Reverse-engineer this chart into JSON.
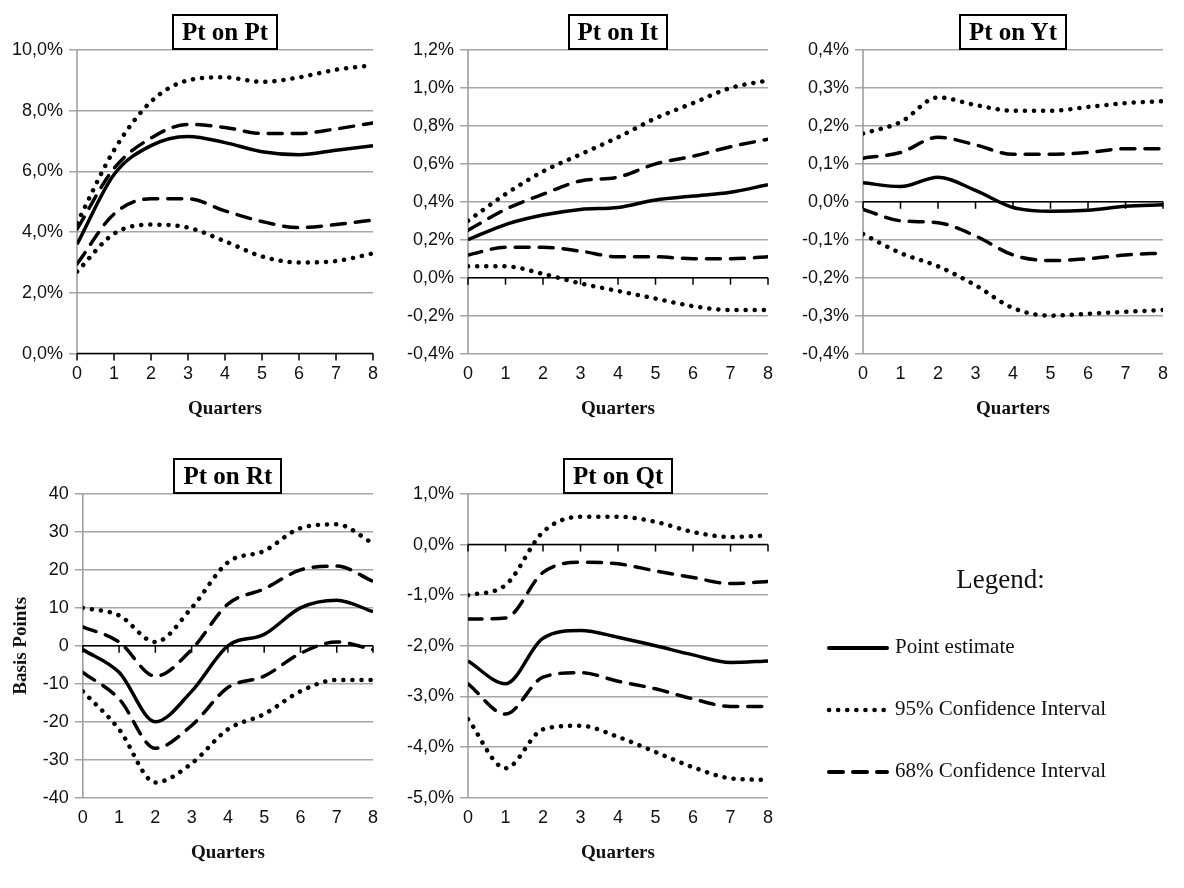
{
  "chart_data": [
    {
      "type": "line",
      "title": "Pt on Pt",
      "xlabel": "Quarters",
      "x": [
        0,
        1,
        2,
        3,
        4,
        5,
        6,
        7,
        8
      ],
      "xlim": [
        0,
        8
      ],
      "xticks": [
        0,
        1,
        2,
        3,
        4,
        5,
        6,
        7,
        8
      ],
      "ylim": [
        0,
        10
      ],
      "yticks": [
        {
          "value": 0,
          "label": "0,0%"
        },
        {
          "value": 2,
          "label": "2,0%"
        },
        {
          "value": 4,
          "label": "4,0%"
        },
        {
          "value": 6,
          "label": "6,0%"
        },
        {
          "value": 8,
          "label": "8,0%"
        },
        {
          "value": 10,
          "label": "10,0%"
        }
      ],
      "grid": "y",
      "marker": "none",
      "series": [
        {
          "color": "#000000",
          "line_style": "dotted",
          "values": [
            4.3,
            6.7,
            8.3,
            9.0,
            9.1,
            8.95,
            9.1,
            9.35,
            9.5
          ]
        },
        {
          "color": "#000000",
          "line_style": "dashed",
          "values": [
            4.1,
            6.1,
            7.1,
            7.55,
            7.45,
            7.25,
            7.25,
            7.4,
            7.6
          ]
        },
        {
          "color": "#000000",
          "line_style": "solid",
          "values": [
            3.6,
            5.9,
            6.85,
            7.15,
            6.95,
            6.65,
            6.55,
            6.7,
            6.85
          ]
        },
        {
          "color": "#000000",
          "line_style": "dashed",
          "values": [
            2.95,
            4.6,
            5.1,
            5.1,
            4.7,
            4.35,
            4.15,
            4.25,
            4.4
          ]
        },
        {
          "color": "#000000",
          "line_style": "dotted",
          "values": [
            2.7,
            3.95,
            4.25,
            4.15,
            3.7,
            3.2,
            3.0,
            3.05,
            3.3
          ]
        }
      ]
    },
    {
      "type": "line",
      "title": "Pt on It",
      "xlabel": "Quarters",
      "x": [
        0,
        1,
        2,
        3,
        4,
        5,
        6,
        7,
        8
      ],
      "xlim": [
        0,
        8
      ],
      "xticks": [
        0,
        1,
        2,
        3,
        4,
        5,
        6,
        7,
        8
      ],
      "ylim": [
        -0.4,
        1.2
      ],
      "yticks": [
        {
          "value": -0.4,
          "label": "-0,4%"
        },
        {
          "value": -0.2,
          "label": "-0,2%"
        },
        {
          "value": 0,
          "label": "0,0%"
        },
        {
          "value": 0.2,
          "label": "0,2%"
        },
        {
          "value": 0.4,
          "label": "0,4%"
        },
        {
          "value": 0.6,
          "label": "0,6%"
        },
        {
          "value": 0.8,
          "label": "0,8%"
        },
        {
          "value": 1.0,
          "label": "1,0%"
        },
        {
          "value": 1.2,
          "label": "1,2%"
        }
      ],
      "grid": "y",
      "marker": "none",
      "series": [
        {
          "color": "#000000",
          "line_style": "dotted",
          "values": [
            0.3,
            0.44,
            0.56,
            0.65,
            0.74,
            0.84,
            0.92,
            1.0,
            1.04
          ]
        },
        {
          "color": "#000000",
          "line_style": "dashed",
          "values": [
            0.25,
            0.36,
            0.44,
            0.51,
            0.53,
            0.6,
            0.64,
            0.69,
            0.73
          ]
        },
        {
          "color": "#000000",
          "line_style": "solid",
          "values": [
            0.2,
            0.28,
            0.33,
            0.36,
            0.37,
            0.41,
            0.43,
            0.45,
            0.49
          ]
        },
        {
          "color": "#000000",
          "line_style": "dashed",
          "values": [
            0.12,
            0.16,
            0.16,
            0.14,
            0.11,
            0.11,
            0.1,
            0.1,
            0.11
          ]
        },
        {
          "color": "#000000",
          "line_style": "dotted",
          "values": [
            0.06,
            0.06,
            0.02,
            -0.03,
            -0.07,
            -0.11,
            -0.15,
            -0.17,
            -0.17
          ]
        }
      ]
    },
    {
      "type": "line",
      "title": "Pt on Yt",
      "xlabel": "Quarters",
      "x": [
        0,
        1,
        2,
        3,
        4,
        5,
        6,
        7,
        8
      ],
      "xlim": [
        0,
        8
      ],
      "xticks": [
        0,
        1,
        2,
        3,
        4,
        5,
        6,
        7,
        8
      ],
      "ylim": [
        -0.4,
        0.4
      ],
      "yticks": [
        {
          "value": -0.4,
          "label": "-0,4%"
        },
        {
          "value": -0.3,
          "label": "-0,3%"
        },
        {
          "value": -0.2,
          "label": "-0,2%"
        },
        {
          "value": -0.1,
          "label": "-0,1%"
        },
        {
          "value": 0,
          "label": "0,0%"
        },
        {
          "value": 0.1,
          "label": "0,1%"
        },
        {
          "value": 0.2,
          "label": "0,2%"
        },
        {
          "value": 0.3,
          "label": "0,3%"
        },
        {
          "value": 0.4,
          "label": "0,4%"
        }
      ],
      "grid": "y",
      "marker": "none",
      "series": [
        {
          "color": "#000000",
          "line_style": "dotted",
          "values": [
            0.18,
            0.21,
            0.275,
            0.255,
            0.24,
            0.24,
            0.25,
            0.26,
            0.265
          ]
        },
        {
          "color": "#000000",
          "line_style": "dashed",
          "values": [
            0.115,
            0.13,
            0.17,
            0.15,
            0.125,
            0.125,
            0.13,
            0.14,
            0.14
          ]
        },
        {
          "color": "#000000",
          "line_style": "solid",
          "values": [
            0.05,
            0.04,
            0.065,
            0.03,
            -0.015,
            -0.025,
            -0.022,
            -0.012,
            -0.008
          ]
        },
        {
          "color": "#000000",
          "line_style": "dashed",
          "values": [
            -0.02,
            -0.05,
            -0.055,
            -0.09,
            -0.14,
            -0.155,
            -0.15,
            -0.14,
            -0.135
          ]
        },
        {
          "color": "#000000",
          "line_style": "dotted",
          "values": [
            -0.085,
            -0.135,
            -0.17,
            -0.22,
            -0.28,
            -0.3,
            -0.295,
            -0.29,
            -0.285
          ]
        }
      ]
    },
    {
      "type": "line",
      "title": "Pt on Rt",
      "xlabel": "Quarters",
      "ylabel": "Basis Points",
      "x": [
        0,
        1,
        2,
        3,
        4,
        5,
        6,
        7,
        8
      ],
      "xlim": [
        0,
        8
      ],
      "xticks": [
        0,
        1,
        2,
        3,
        4,
        5,
        6,
        7,
        8
      ],
      "ylim": [
        -40,
        40
      ],
      "yticks": [
        -40,
        -30,
        -20,
        -10,
        0,
        10,
        20,
        30,
        40
      ],
      "grid": "y",
      "marker": "none",
      "series": [
        {
          "color": "#000000",
          "line_style": "dotted",
          "values": [
            10,
            8,
            1,
            10,
            22,
            25,
            31,
            32,
            27
          ]
        },
        {
          "color": "#000000",
          "line_style": "dashed",
          "values": [
            5,
            1,
            -8,
            -1,
            11,
            15,
            20,
            21,
            17
          ]
        },
        {
          "color": "#000000",
          "line_style": "solid",
          "values": [
            -1,
            -7,
            -20,
            -12,
            0,
            3,
            10,
            12,
            9
          ]
        },
        {
          "color": "#000000",
          "line_style": "dashed",
          "values": [
            -7,
            -14,
            -27,
            -21,
            -11,
            -8,
            -2,
            1,
            -1
          ]
        },
        {
          "color": "#000000",
          "line_style": "dotted",
          "values": [
            -12,
            -22,
            -36,
            -31,
            -22,
            -18,
            -12,
            -9,
            -9
          ]
        }
      ]
    },
    {
      "type": "line",
      "title": "Pt on Qt",
      "xlabel": "Quarters",
      "legend_title": "Legend:",
      "legend": "right",
      "x": [
        0,
        1,
        2,
        3,
        4,
        5,
        6,
        7,
        8
      ],
      "xlim": [
        0,
        8
      ],
      "xticks": [
        0,
        1,
        2,
        3,
        4,
        5,
        6,
        7,
        8
      ],
      "ylim": [
        -5,
        1
      ],
      "yticks": [
        {
          "value": -5,
          "label": "-5,0%"
        },
        {
          "value": -4,
          "label": "-4,0%"
        },
        {
          "value": -3,
          "label": "-3,0%"
        },
        {
          "value": -2,
          "label": "-2,0%"
        },
        {
          "value": -1,
          "label": "-1,0%"
        },
        {
          "value": 0,
          "label": "0,0%"
        },
        {
          "value": 1,
          "label": "1,0%"
        }
      ],
      "grid": "y",
      "marker": "none",
      "series": [
        {
          "name": "Point estimate",
          "color": "#000000",
          "line_style": "solid",
          "values": [
            -2.3,
            -2.75,
            -1.85,
            -1.7,
            -1.83,
            -2.0,
            -2.18,
            -2.33,
            -2.3
          ]
        },
        {
          "name": "95% Confidence Interval",
          "color": "#000000",
          "line_style": "dotted",
          "values": [
            -1.0,
            -0.8,
            0.25,
            0.55,
            0.55,
            0.45,
            0.25,
            0.15,
            0.18
          ]
        },
        {
          "color": "#000000",
          "line_style": "dotted",
          "values": [
            -3.45,
            -4.42,
            -3.65,
            -3.58,
            -3.8,
            -4.1,
            -4.4,
            -4.62,
            -4.65
          ]
        },
        {
          "name": "68% Confidence Interval",
          "color": "#000000",
          "line_style": "dashed",
          "values": [
            -1.47,
            -1.45,
            -0.55,
            -0.35,
            -0.38,
            -0.52,
            -0.65,
            -0.77,
            -0.73
          ]
        },
        {
          "color": "#000000",
          "line_style": "dashed",
          "values": [
            -2.75,
            -3.35,
            -2.62,
            -2.53,
            -2.7,
            -2.85,
            -3.05,
            -3.2,
            -3.2
          ]
        }
      ]
    }
  ]
}
